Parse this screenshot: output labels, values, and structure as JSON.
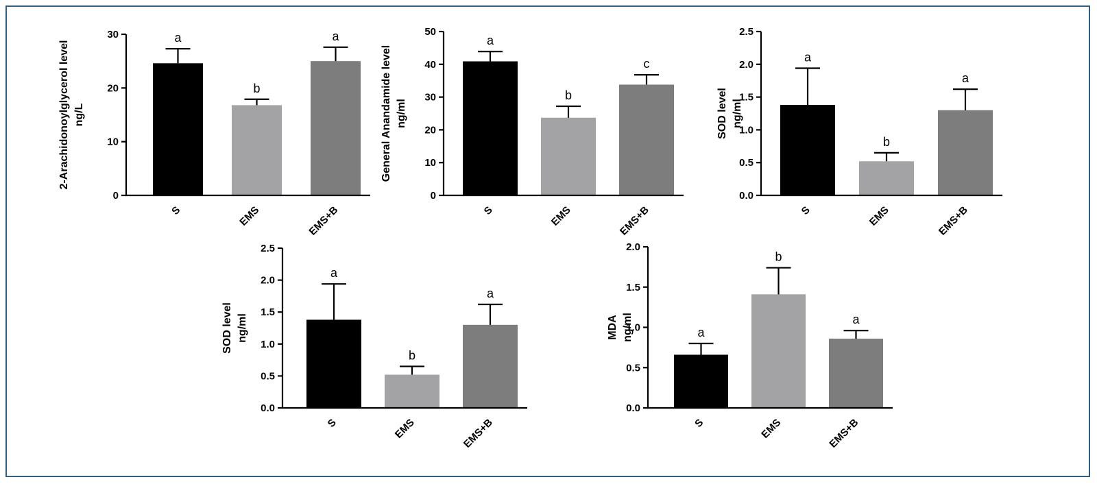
{
  "chart_data": [
    {
      "type": "bar",
      "ylabel_lines": [
        "2-Arachidonoylglycerol level",
        "ng/L"
      ],
      "categories": [
        "S",
        "EMS",
        "EMS+B"
      ],
      "values": [
        24.6,
        16.8,
        25.0
      ],
      "errors": [
        2.7,
        1.1,
        2.6
      ],
      "letters": [
        "a",
        "b",
        "a"
      ],
      "yticks": [
        0,
        10,
        20,
        30
      ],
      "ylim": [
        0,
        30
      ],
      "colors": [
        "#000000",
        "#a3a3a5",
        "#7d7d7d"
      ]
    },
    {
      "type": "bar",
      "ylabel_lines": [
        "General Anandamide level",
        "ng/ml"
      ],
      "categories": [
        "S",
        "EMS",
        "EMS+B"
      ],
      "values": [
        40.9,
        23.7,
        33.8
      ],
      "errors": [
        3.0,
        3.5,
        3.0
      ],
      "letters": [
        "a",
        "b",
        "c"
      ],
      "yticks": [
        0,
        10,
        20,
        30,
        40,
        50
      ],
      "ylim": [
        0,
        50
      ],
      "colors": [
        "#000000",
        "#a3a3a5",
        "#7d7d7d"
      ]
    },
    {
      "type": "bar",
      "ylabel_lines": [
        "SOD level",
        "ng/ml"
      ],
      "categories": [
        "S",
        "EMS",
        "EMS+B"
      ],
      "values": [
        1.38,
        0.52,
        1.3
      ],
      "errors": [
        0.56,
        0.13,
        0.32
      ],
      "letters": [
        "a",
        "b",
        "a"
      ],
      "yticks": [
        "0.0",
        "0.5",
        "1.0",
        "1.5",
        "2.0",
        "2.5"
      ],
      "ylim": [
        0,
        2.5
      ],
      "colors": [
        "#000000",
        "#a3a3a5",
        "#7d7d7d"
      ]
    },
    {
      "type": "bar",
      "ylabel_lines": [
        "SOD level",
        "ng/ml"
      ],
      "categories": [
        "S",
        "EMS",
        "EMS+B"
      ],
      "values": [
        1.38,
        0.52,
        1.3
      ],
      "errors": [
        0.56,
        0.13,
        0.32
      ],
      "letters": [
        "a",
        "b",
        "a"
      ],
      "yticks": [
        "0.0",
        "0.5",
        "1.0",
        "1.5",
        "2.0",
        "2.5"
      ],
      "ylim": [
        0,
        2.5
      ],
      "colors": [
        "#000000",
        "#a3a3a5",
        "#7d7d7d"
      ]
    },
    {
      "type": "bar",
      "ylabel_lines": [
        "MDA",
        "ng/ml"
      ],
      "categories": [
        "S",
        "EMS",
        "EMS+B"
      ],
      "values": [
        0.66,
        1.41,
        0.86
      ],
      "errors": [
        0.14,
        0.33,
        0.1
      ],
      "letters": [
        "a",
        "b",
        "a"
      ],
      "yticks": [
        "0.0",
        "0.5",
        "1.0",
        "1.5",
        "2.0"
      ],
      "ylim": [
        0,
        2.0
      ],
      "colors": [
        "#000000",
        "#a3a3a5",
        "#7d7d7d"
      ]
    }
  ]
}
